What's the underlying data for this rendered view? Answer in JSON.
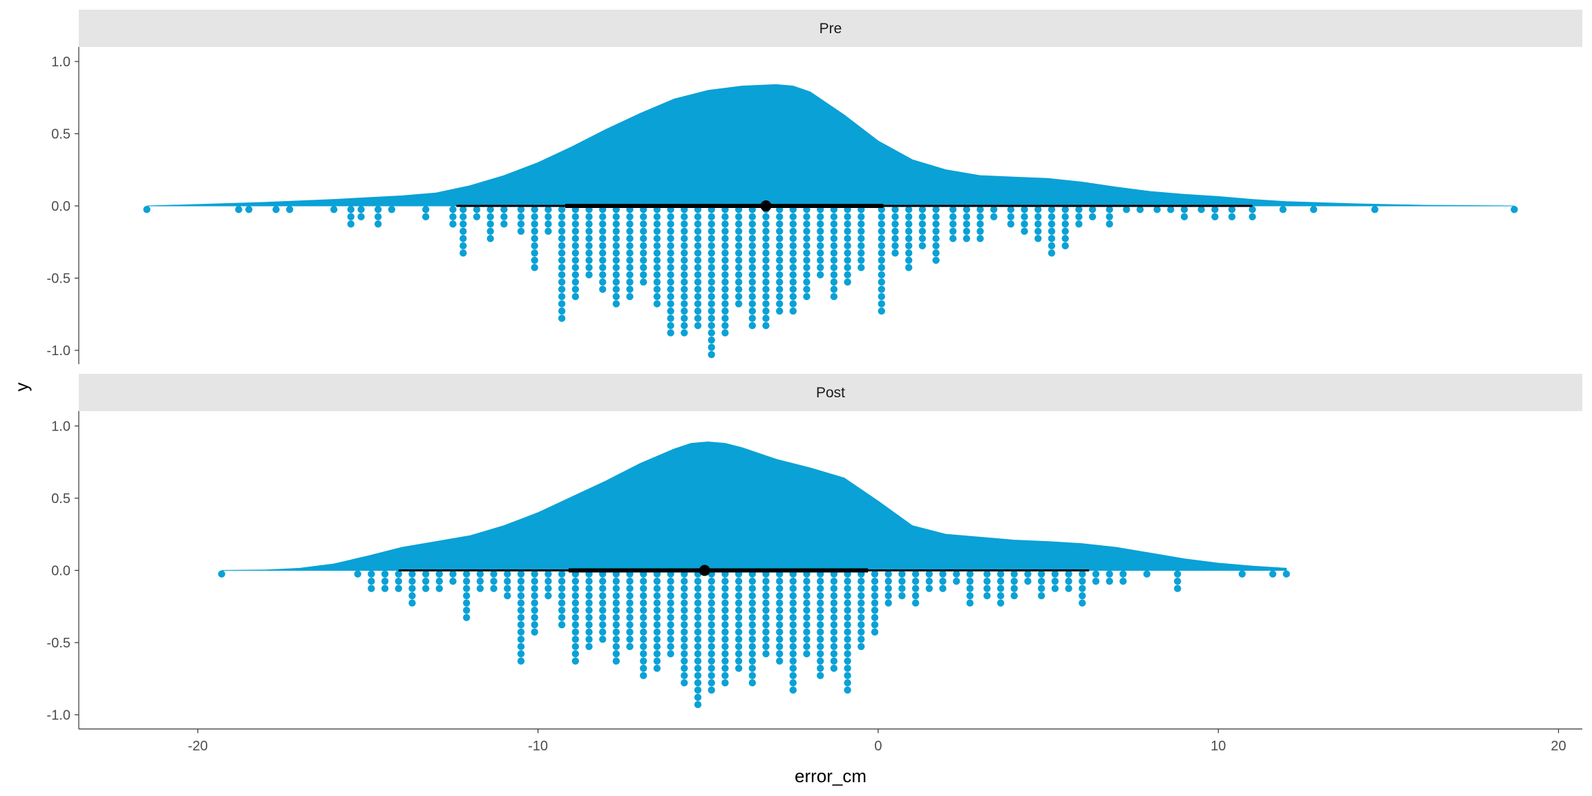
{
  "chart_data": {
    "type": "raincloud",
    "xlabel": "error_cm",
    "ylabel": "y",
    "xlim": [
      -23.5,
      20.7
    ],
    "ylim": [
      -1.1,
      1.1
    ],
    "x_ticks": [
      -20,
      -10,
      0,
      10,
      20
    ],
    "y_ticks": [
      1.0,
      0.5,
      0.0,
      -0.5,
      -1.0
    ],
    "x_tick_labels": [
      "-20",
      "-10",
      "0",
      "10",
      "20"
    ],
    "y_tick_labels": [
      "1.0",
      "0.5",
      "0.0",
      "-0.5",
      "-1.0"
    ],
    "grid": false,
    "fill_color": "#0aa1d6",
    "point_color": "#0aa1d6",
    "summary_color": "#000000",
    "strip_color": "#e5e5e5",
    "panels": [
      {
        "label": "Pre",
        "density": {
          "x": [
            -21.5,
            -20,
            -18,
            -16,
            -14,
            -13,
            -12,
            -11,
            -10,
            -9,
            -8,
            -7,
            -6,
            -5,
            -4,
            -3,
            -2.5,
            -2,
            -1,
            0,
            1,
            2,
            3,
            4,
            5,
            6,
            7,
            8,
            9,
            10,
            11,
            12,
            14,
            16,
            18.7
          ],
          "y": [
            0.0,
            0.01,
            0.025,
            0.045,
            0.07,
            0.09,
            0.14,
            0.21,
            0.3,
            0.41,
            0.53,
            0.64,
            0.74,
            0.8,
            0.83,
            0.84,
            0.83,
            0.79,
            0.63,
            0.45,
            0.32,
            0.25,
            0.21,
            0.2,
            0.19,
            0.165,
            0.13,
            0.1,
            0.08,
            0.065,
            0.045,
            0.03,
            0.015,
            0.005,
            0.0
          ]
        },
        "median": -3.3,
        "interval_66": [
          -9.2,
          0.15
        ],
        "interval_95": [
          -12.4,
          11.0
        ],
        "dot_columns": {
          "x": [
            -21.5,
            -18.8,
            -18.5,
            -17.7,
            -17.3,
            -16,
            -15.5,
            -15.2,
            -14.7,
            -14.3,
            -13.3,
            -12.5,
            -12.2,
            -11.8,
            -11.4,
            -11.0,
            -10.5,
            -10.1,
            -9.7,
            -9.3,
            -8.9,
            -8.5,
            -8.1,
            -7.7,
            -7.3,
            -6.9,
            -6.5,
            -6.1,
            -5.7,
            -5.3,
            -4.9,
            -4.5,
            -4.1,
            -3.7,
            -3.3,
            -2.9,
            -2.5,
            -2.1,
            -1.7,
            -1.3,
            -0.9,
            -0.5,
            0.1,
            0.5,
            0.9,
            1.3,
            1.7,
            2.2,
            2.6,
            3.0,
            3.4,
            3.9,
            4.3,
            4.7,
            5.1,
            5.5,
            5.9,
            6.3,
            6.8,
            7.3,
            7.7,
            8.2,
            8.6,
            9.0,
            9.5,
            9.9,
            10.4,
            11.0,
            11.9,
            12.8,
            14.6,
            18.7
          ],
          "count": [
            1,
            1,
            1,
            1,
            1,
            1,
            3,
            2,
            3,
            1,
            2,
            3,
            7,
            2,
            5,
            3,
            4,
            9,
            4,
            16,
            13,
            10,
            12,
            14,
            13,
            11,
            14,
            18,
            18,
            17,
            21,
            18,
            14,
            17,
            17,
            15,
            15,
            13,
            10,
            13,
            11,
            9,
            15,
            7,
            9,
            6,
            8,
            5,
            5,
            5,
            2,
            3,
            4,
            5,
            7,
            6,
            3,
            2,
            3,
            1,
            1,
            1,
            1,
            2,
            1,
            2,
            2,
            2,
            1,
            1,
            1,
            1
          ]
        }
      },
      {
        "label": "Post",
        "density": {
          "x": [
            -19.3,
            -18,
            -17,
            -16,
            -15,
            -14,
            -13,
            -12,
            -11,
            -10,
            -9,
            -8,
            -7,
            -6,
            -5.5,
            -5,
            -4.5,
            -4,
            -3,
            -2,
            -1,
            0,
            1,
            2,
            3,
            4,
            5,
            6,
            7,
            8,
            9,
            10,
            11,
            12
          ],
          "y": [
            0.0,
            0.003,
            0.015,
            0.045,
            0.1,
            0.16,
            0.2,
            0.24,
            0.31,
            0.4,
            0.51,
            0.62,
            0.74,
            0.84,
            0.88,
            0.89,
            0.88,
            0.85,
            0.77,
            0.71,
            0.64,
            0.48,
            0.31,
            0.25,
            0.23,
            0.21,
            0.2,
            0.185,
            0.16,
            0.12,
            0.08,
            0.05,
            0.03,
            0.015
          ]
        },
        "median": -5.1,
        "interval_66": [
          -9.1,
          -0.3
        ],
        "interval_95": [
          -14.1,
          6.2
        ],
        "dot_columns": {
          "x": [
            -19.3,
            -15.3,
            -14.9,
            -14.5,
            -14.1,
            -13.7,
            -13.3,
            -12.9,
            -12.5,
            -12.1,
            -11.7,
            -11.3,
            -10.9,
            -10.5,
            -10.1,
            -9.7,
            -9.3,
            -8.9,
            -8.5,
            -8.1,
            -7.7,
            -7.3,
            -6.9,
            -6.5,
            -6.1,
            -5.7,
            -5.3,
            -4.9,
            -4.5,
            -4.1,
            -3.7,
            -3.3,
            -2.9,
            -2.5,
            -2.1,
            -1.7,
            -1.3,
            -0.9,
            -0.5,
            -0.1,
            0.3,
            0.7,
            1.1,
            1.5,
            1.9,
            2.3,
            2.7,
            3.2,
            3.6,
            4.0,
            4.4,
            4.8,
            5.2,
            5.6,
            6.0,
            6.4,
            6.8,
            7.2,
            7.9,
            8.8,
            10.7,
            11.6,
            12.0
          ],
          "count": [
            1,
            1,
            3,
            3,
            3,
            5,
            3,
            3,
            2,
            7,
            3,
            3,
            4,
            13,
            9,
            4,
            8,
            13,
            11,
            10,
            13,
            11,
            15,
            14,
            12,
            16,
            19,
            17,
            16,
            14,
            16,
            12,
            13,
            17,
            12,
            15,
            14,
            17,
            11,
            9,
            5,
            4,
            5,
            3,
            3,
            2,
            5,
            4,
            5,
            4,
            2,
            4,
            3,
            3,
            5,
            2,
            2,
            2,
            1,
            3,
            1,
            1,
            1
          ]
        }
      }
    ]
  }
}
